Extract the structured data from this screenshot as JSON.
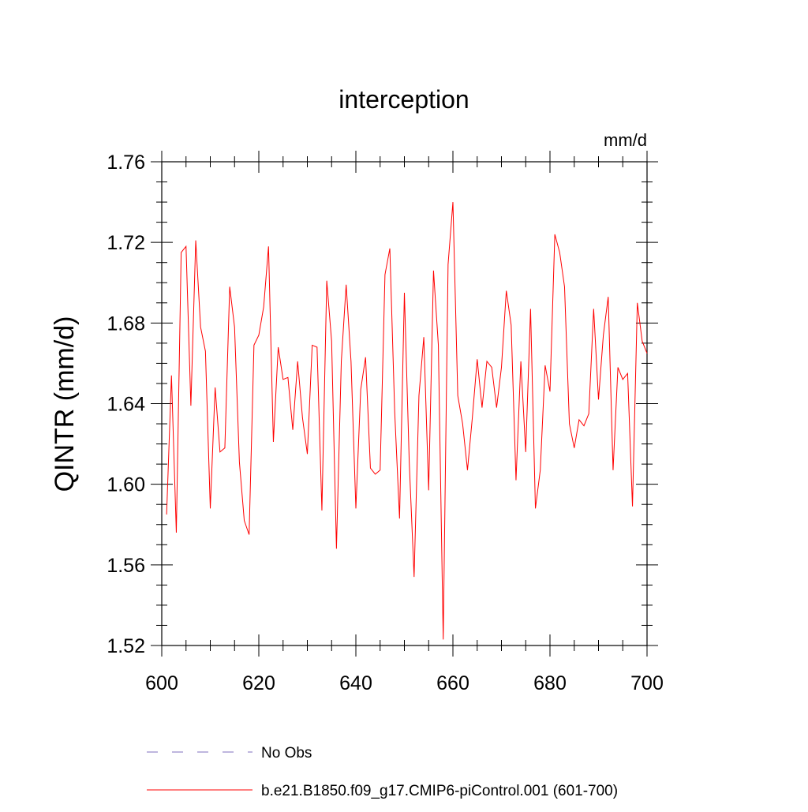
{
  "chart_data": {
    "type": "line",
    "title": "interception",
    "units_label": "mm/d",
    "xlabel": "",
    "ylabel": "QINTR  (mm/d)",
    "xlim": [
      600,
      700
    ],
    "ylim": [
      1.52,
      1.76
    ],
    "xticks": [
      600,
      620,
      640,
      660,
      680,
      700
    ],
    "yticks": [
      1.52,
      1.56,
      1.6,
      1.64,
      1.68,
      1.72,
      1.76
    ],
    "ytick_labels": [
      "1.52",
      "1.56",
      "1.60",
      "1.64",
      "1.68",
      "1.72",
      "1.76"
    ],
    "grid": false,
    "legend_position": "bottom",
    "series": [
      {
        "name": "No Obs",
        "color": "#7f6fbf",
        "style": "dashed",
        "x": [],
        "values": []
      },
      {
        "name": "b.e21.B1850.f09_g17.CMIP6-piControl.001 (601-700)",
        "color": "#ff0000",
        "style": "solid",
        "x": [
          601,
          602,
          603,
          604,
          605,
          606,
          607,
          608,
          609,
          610,
          611,
          612,
          613,
          614,
          615,
          616,
          617,
          618,
          619,
          620,
          621,
          622,
          623,
          624,
          625,
          626,
          627,
          628,
          629,
          630,
          631,
          632,
          633,
          634,
          635,
          636,
          637,
          638,
          639,
          640,
          641,
          642,
          643,
          644,
          645,
          646,
          647,
          648,
          649,
          650,
          651,
          652,
          653,
          654,
          655,
          656,
          657,
          658,
          659,
          660,
          661,
          662,
          663,
          664,
          665,
          666,
          667,
          668,
          669,
          670,
          671,
          672,
          673,
          674,
          675,
          676,
          677,
          678,
          679,
          680,
          681,
          682,
          683,
          684,
          685,
          686,
          687,
          688,
          689,
          690,
          691,
          692,
          693,
          694,
          695,
          696,
          697,
          698,
          699,
          700
        ],
        "values": [
          1.585,
          1.654,
          1.576,
          1.715,
          1.718,
          1.639,
          1.721,
          1.678,
          1.666,
          1.588,
          1.648,
          1.616,
          1.618,
          1.698,
          1.678,
          1.611,
          1.582,
          1.575,
          1.669,
          1.674,
          1.688,
          1.718,
          1.621,
          1.668,
          1.652,
          1.653,
          1.627,
          1.661,
          1.633,
          1.615,
          1.669,
          1.668,
          1.587,
          1.701,
          1.671,
          1.568,
          1.661,
          1.699,
          1.661,
          1.588,
          1.647,
          1.663,
          1.608,
          1.605,
          1.607,
          1.704,
          1.717,
          1.636,
          1.583,
          1.695,
          1.611,
          1.554,
          1.644,
          1.673,
          1.597,
          1.706,
          1.669,
          1.523,
          1.709,
          1.74,
          1.644,
          1.63,
          1.607,
          1.633,
          1.662,
          1.638,
          1.661,
          1.658,
          1.638,
          1.658,
          1.696,
          1.679,
          1.602,
          1.661,
          1.616,
          1.687,
          1.588,
          1.607,
          1.659,
          1.646,
          1.724,
          1.715,
          1.698,
          1.63,
          1.618,
          1.632,
          1.629,
          1.635,
          1.687,
          1.642,
          1.674,
          1.693,
          1.607,
          1.658,
          1.652,
          1.655,
          1.589,
          1.69,
          1.671,
          1.665
        ]
      }
    ]
  }
}
